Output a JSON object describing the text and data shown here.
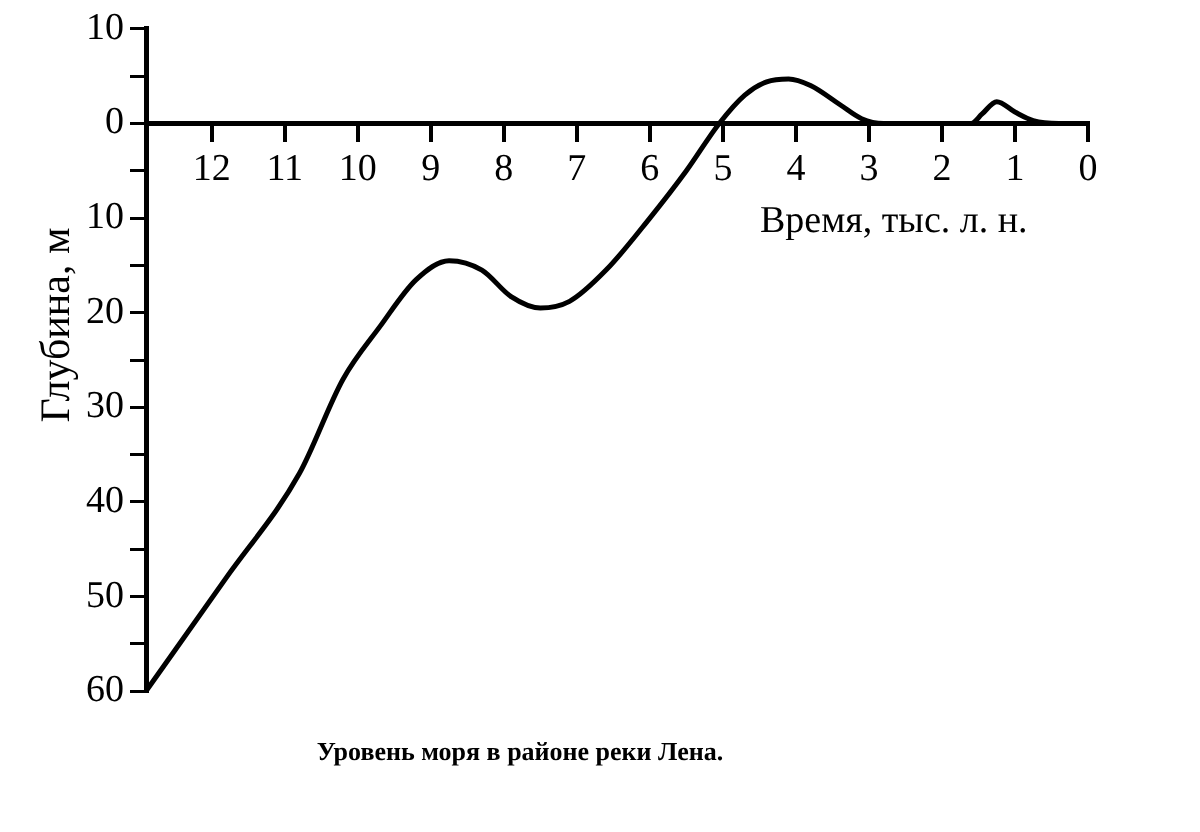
{
  "chart_data": {
    "type": "line",
    "xlabel": "Время, тыс. л. н.",
    "ylabel": "Глубина, м",
    "annotations": [
      "Уровень моря в районе реки Лена."
    ],
    "x": [
      0,
      0.4,
      0.75,
      1.0,
      1.25,
      1.45,
      1.6,
      2.8,
      3.1,
      3.4,
      3.8,
      4.1,
      4.4,
      4.7,
      5.05,
      5.5,
      6.0,
      6.6,
      7.1,
      7.5,
      7.9,
      8.3,
      8.75,
      9.2,
      9.7,
      10.2,
      10.8,
      11.8,
      12.9
    ],
    "series": [
      {
        "color": "#000000",
        "values": [
          0,
          0,
          -0.3,
          -1.2,
          -2.3,
          -1,
          0,
          0,
          -0.5,
          -2,
          -4,
          -4.7,
          -4.4,
          -3,
          0,
          5,
          10,
          15.5,
          18.8,
          19.5,
          18.3,
          15.5,
          14.5,
          16.5,
          21.5,
          27,
          37,
          48,
          60
        ]
      }
    ],
    "xlim": [
      12.9,
      0
    ],
    "xticks": [
      0,
      1,
      2,
      3,
      4,
      5,
      6,
      7,
      8,
      9,
      10,
      11,
      12
    ],
    "ylim": [
      60,
      -10
    ],
    "yticks": [
      {
        "value": -10,
        "label": "10"
      },
      {
        "value": -5,
        "label": null
      },
      0,
      {
        "value": 5,
        "label": null
      },
      10,
      {
        "value": 15,
        "label": null
      },
      20,
      {
        "value": 25,
        "label": null
      },
      30,
      {
        "value": 35,
        "label": null
      },
      40,
      {
        "value": 45,
        "label": null
      },
      50,
      {
        "value": 55,
        "label": null
      },
      60
    ],
    "grid": false,
    "legend": false,
    "marker": "none",
    "line_style": "solid"
  }
}
